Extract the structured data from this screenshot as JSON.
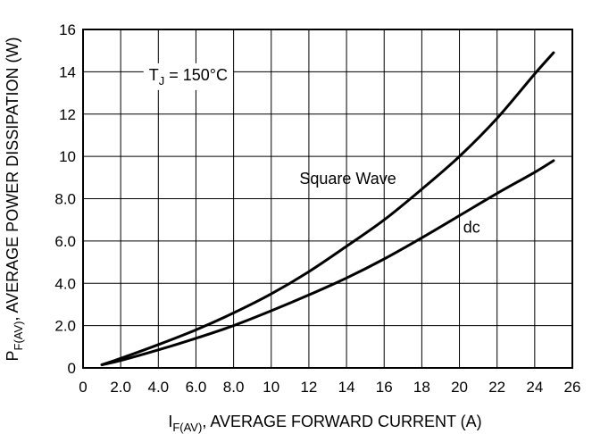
{
  "chart_data": {
    "type": "line",
    "xlabel": {
      "main": "I",
      "sub": "F(AV)",
      "rest": ", AVERAGE FORWARD CURRENT (A)"
    },
    "ylabel": {
      "main": "P",
      "sub": "F(AV)",
      "rest": ", AVERAGE POWER DISSIPATION (W)"
    },
    "xlim": [
      0,
      26
    ],
    "ylim": [
      0,
      16
    ],
    "x_ticks": [
      0,
      2,
      4,
      6,
      8,
      10,
      12,
      14,
      16,
      18,
      20,
      22,
      24,
      26
    ],
    "x_tick_labels": [
      "0",
      "2.0",
      "4.0",
      "6.0",
      "8.0",
      "10",
      "12",
      "14",
      "16",
      "18",
      "20",
      "22",
      "24",
      "26"
    ],
    "y_ticks": [
      0,
      2,
      4,
      6,
      8,
      10,
      12,
      14,
      16
    ],
    "y_tick_labels": [
      "0",
      "2.0",
      "4.0",
      "6.0",
      "8.0",
      "10",
      "12",
      "14",
      "16"
    ],
    "grid": true,
    "annotations": [
      {
        "id": "tj",
        "main": "T",
        "sub": "J",
        "rest": " = 150°C",
        "x": 3.5,
        "y": 13.6
      },
      {
        "id": "square",
        "text": "Square Wave",
        "x": 11.5,
        "y": 8.7
      },
      {
        "id": "dc",
        "text": "dc",
        "x": 20.2,
        "y": 6.4
      }
    ],
    "series": [
      {
        "name": "Square Wave",
        "x": [
          1,
          2,
          4,
          6,
          8,
          10,
          12,
          14,
          16,
          18,
          20,
          22,
          24,
          25
        ],
        "y": [
          0.15,
          0.45,
          1.1,
          1.8,
          2.6,
          3.5,
          4.55,
          5.75,
          7.0,
          8.45,
          10.0,
          11.8,
          13.9,
          14.9
        ]
      },
      {
        "name": "dc",
        "x": [
          1,
          2,
          4,
          6,
          8,
          10,
          12,
          14,
          16,
          18,
          20,
          22,
          24,
          25
        ],
        "y": [
          0.15,
          0.35,
          0.85,
          1.4,
          2.0,
          2.7,
          3.45,
          4.25,
          5.15,
          6.15,
          7.2,
          8.25,
          9.25,
          9.8
        ]
      }
    ]
  }
}
